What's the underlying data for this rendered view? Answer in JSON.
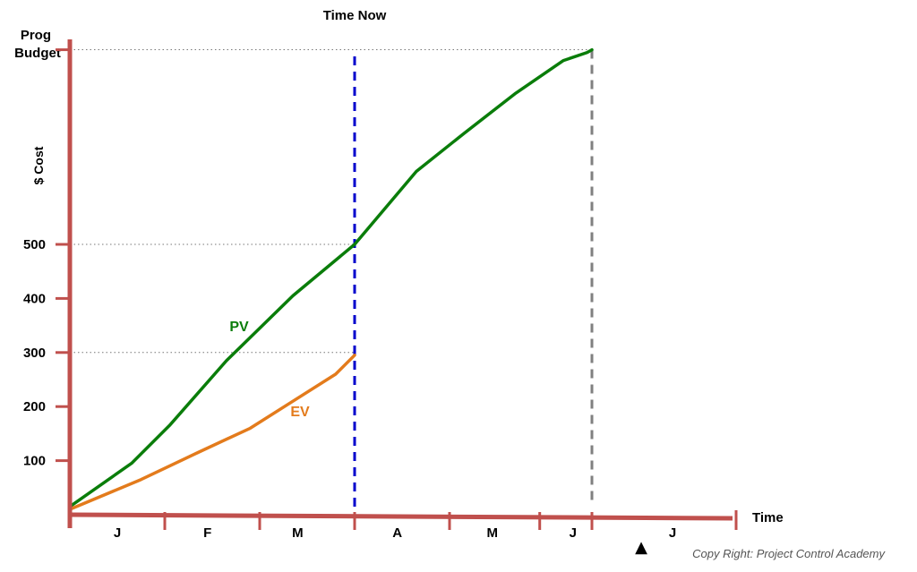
{
  "chart_data": {
    "type": "line",
    "title": "Time Now",
    "xlabel": "Time",
    "ylabel": "$ Cost",
    "y_top_label": "Prog\nBudget",
    "y_ticks": [
      100,
      200,
      300,
      400,
      500
    ],
    "ylim": [
      0,
      860
    ],
    "categories": [
      "J",
      "F",
      "M",
      "A",
      "M",
      "J",
      "J"
    ],
    "x_range": [
      0,
      6.5
    ],
    "time_now": 3,
    "completion": 5.5,
    "reference_levels": [
      300,
      500,
      860
    ],
    "grid": false,
    "series": [
      {
        "name": "PV",
        "color": "#0a7d0a",
        "x": [
          0,
          0.65,
          1.05,
          1.65,
          2.35,
          3.0,
          3.65,
          4.15,
          4.7,
          5.2,
          5.45,
          5.5
        ],
        "y": [
          15,
          95,
          165,
          285,
          405,
          500,
          635,
          705,
          780,
          840,
          855,
          860
        ]
      },
      {
        "name": "EV",
        "color": "#e37b1c",
        "x": [
          0,
          0.75,
          1.35,
          1.9,
          2.35,
          2.8,
          3.0
        ],
        "y": [
          10,
          65,
          115,
          160,
          210,
          260,
          295
        ]
      }
    ],
    "legend": "inline labels"
  },
  "colors": {
    "axis": "#c0504d",
    "time_now_line": "#0000cc",
    "completion_line": "#808080",
    "reference_dotted": "#777777"
  },
  "marker_symbol": "▲",
  "copyright": "Copy Right: Project Control Academy"
}
